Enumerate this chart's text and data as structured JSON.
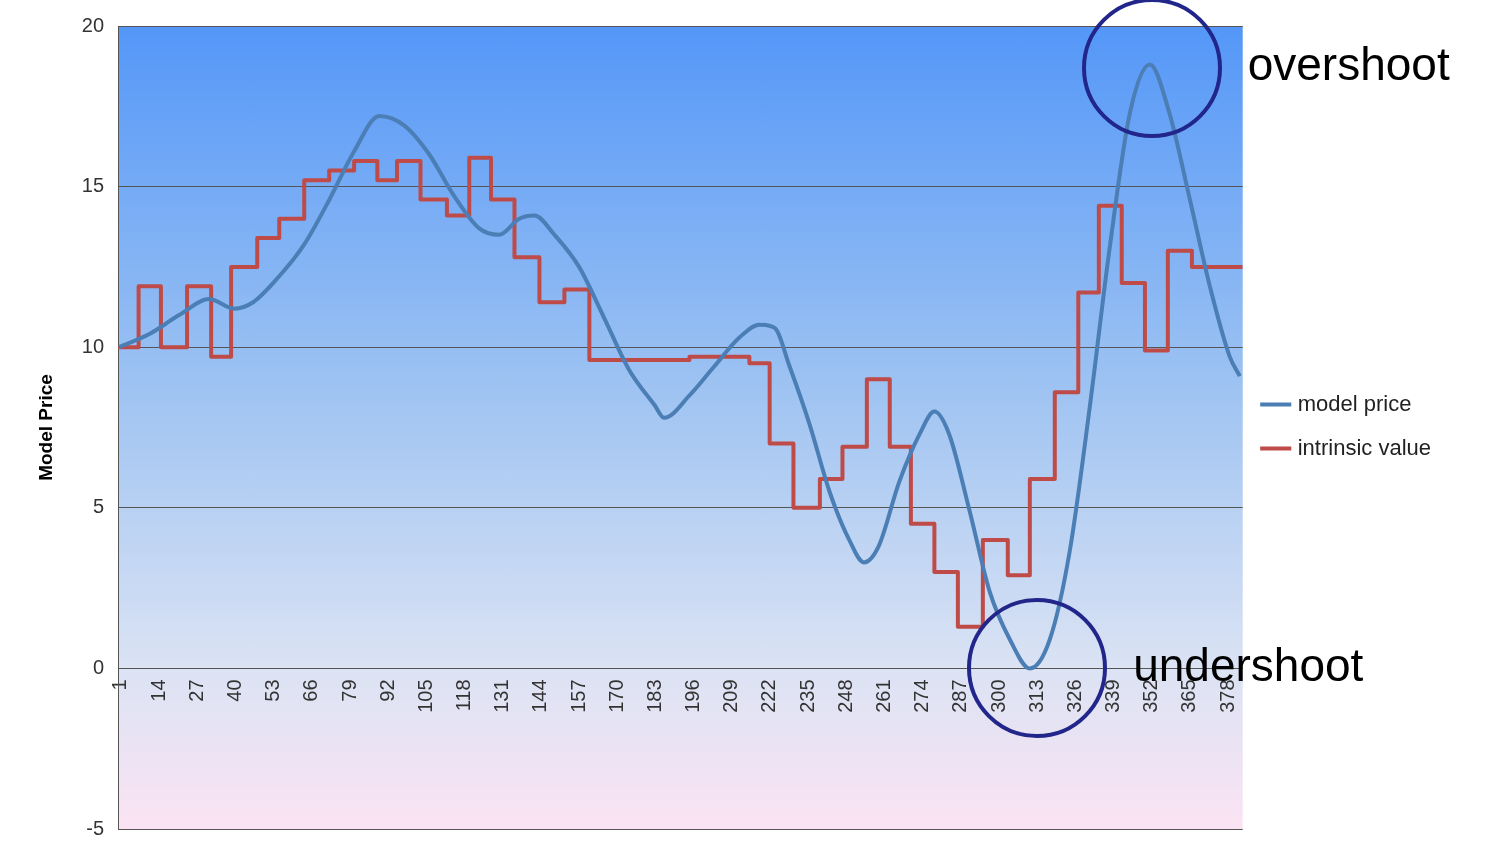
{
  "chart_data": {
    "type": "line",
    "ylabel": "Model Price",
    "xlim": [
      0,
      383
    ],
    "xticks": [
      1,
      14,
      27,
      40,
      53,
      66,
      79,
      92,
      105,
      118,
      131,
      144,
      157,
      170,
      183,
      196,
      209,
      222,
      235,
      248,
      261,
      274,
      287,
      300,
      313,
      326,
      339,
      352,
      365,
      378
    ],
    "ylim": [
      -5,
      20
    ],
    "yticks": [
      -5,
      0,
      5,
      10,
      15,
      20
    ],
    "grid": "y",
    "legend": "right",
    "marker": "none",
    "series": [
      {
        "name": "model price",
        "color": "#4a7eb4",
        "type": "line",
        "x": [
          0.3,
          10.5,
          20.8,
          31,
          39.5,
          46,
          54.8,
          63.4,
          72,
          80.4,
          89,
          97.5,
          106,
          114.5,
          123,
          129.8,
          136.6,
          141.8,
          148.6,
          157,
          165.6,
          174,
          182.7,
          186,
          194.6,
          203,
          211.6,
          218.4,
          223.6,
          228.7,
          235.5,
          242.3,
          249,
          254,
          259,
          266,
          273,
          278,
          283,
          290,
          296.8,
          303.7,
          310.5,
          317.3,
          324,
          331,
          337.7,
          344.6,
          351.4,
          358,
          365,
          371.8,
          378.6,
          382
        ],
        "values": [
          10.0,
          10.4,
          11.0,
          11.5,
          11.2,
          11.4,
          12.2,
          13.2,
          14.6,
          16.1,
          17.2,
          16.9,
          16.0,
          14.7,
          13.7,
          13.5,
          14.0,
          14.1,
          13.5,
          12.5,
          10.9,
          9.3,
          8.2,
          7.8,
          8.5,
          9.4,
          10.3,
          10.7,
          10.6,
          9.4,
          7.6,
          5.5,
          4.0,
          3.3,
          3.8,
          5.8,
          7.3,
          8.0,
          7.3,
          4.9,
          2.4,
          0.9,
          0.0,
          0.9,
          3.6,
          8.2,
          13.1,
          17.3,
          18.8,
          17.3,
          14.6,
          11.9,
          9.7,
          9.1
        ]
      },
      {
        "name": "intrinsic value",
        "color": "#bf4b48",
        "type": "step",
        "x": [
          0,
          7,
          14.6,
          23.5,
          31.7,
          38.5,
          47.4,
          54.9,
          63.4,
          71.9,
          80.4,
          88.3,
          95,
          103,
          112,
          119.6,
          127,
          135,
          143.5,
          152,
          160.5,
          194.6,
          215,
          221.9,
          230,
          239,
          246.7,
          255,
          262.8,
          270,
          278,
          286,
          294.5,
          303,
          310.5,
          319,
          327,
          334,
          341.8,
          349.7,
          357.5,
          365.7,
          383
        ],
        "values": [
          10.0,
          11.9,
          10.0,
          11.9,
          9.7,
          12.5,
          13.4,
          14.0,
          15.2,
          15.5,
          15.8,
          15.2,
          15.8,
          14.6,
          14.1,
          15.9,
          14.6,
          12.8,
          11.4,
          11.8,
          9.6,
          9.7,
          9.5,
          7.0,
          5.0,
          5.9,
          6.9,
          9.0,
          6.9,
          4.5,
          3.0,
          1.3,
          4.0,
          2.9,
          5.9,
          8.6,
          11.7,
          14.4,
          12.0,
          9.9,
          13.0,
          12.5,
          12.5
        ]
      }
    ],
    "annotations": [
      {
        "text": "overshoot",
        "x": 352,
        "y": 18.7
      },
      {
        "text": "undershoot",
        "x": 313,
        "y": 0
      }
    ]
  }
}
